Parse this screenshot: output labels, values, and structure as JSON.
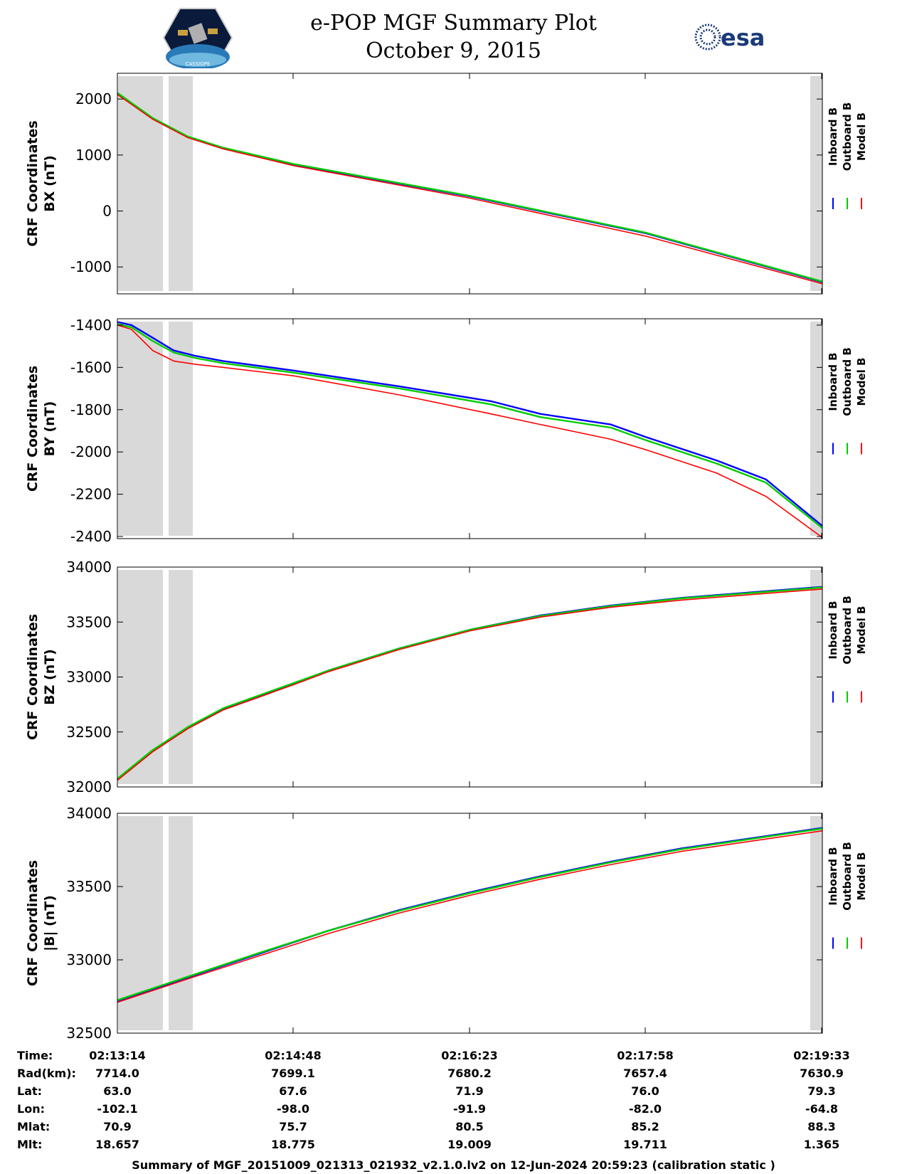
{
  "header": {
    "title": "e-POP MGF Summary Plot",
    "date": "October 9, 2015",
    "logo_left_text": "CASSIOPE",
    "logo_right_text": "esa"
  },
  "colors": {
    "inboard": "#0000ff",
    "outboard": "#00cc00",
    "model": "#ff0000",
    "shade": "#d9d9d9"
  },
  "chart_data": [
    {
      "type": "line",
      "ylabel_line1": "CRF Coordinates",
      "ylabel_line2": "BX (nT)",
      "ylim": [
        -1480,
        2460
      ],
      "yticks": [
        2000,
        1000,
        0,
        -1000
      ],
      "ytick_labels": [
        "2000",
        "1000",
        "0",
        "-1000"
      ],
      "x": [
        0,
        0.05,
        0.1,
        0.15,
        0.25,
        0.5,
        0.75,
        1
      ],
      "series": [
        {
          "name": "Inboard B",
          "values": [
            2100,
            1650,
            1320,
            1120,
            830,
            260,
            -400,
            -1270
          ]
        },
        {
          "name": "Outboard B",
          "values": [
            2110,
            1660,
            1330,
            1130,
            840,
            270,
            -390,
            -1260
          ]
        },
        {
          "name": "Model B",
          "values": [
            2080,
            1640,
            1310,
            1110,
            810,
            230,
            -450,
            -1300
          ]
        }
      ],
      "legend": [
        "Inboard B",
        "Outboard B",
        "Model B"
      ]
    },
    {
      "type": "line",
      "ylabel_line1": "CRF Coordinates",
      "ylabel_line2": "BY (nT)",
      "ylim": [
        -2410,
        -1370
      ],
      "yticks": [
        -1400,
        -1600,
        -1800,
        -2000,
        -2200,
        -2400
      ],
      "ytick_labels": [
        "-1400",
        "-1600",
        "-1800",
        "-2000",
        "-2200",
        "-2400"
      ],
      "x": [
        0,
        0.02,
        0.05,
        0.08,
        0.11,
        0.15,
        0.25,
        0.4,
        0.53,
        0.6,
        0.7,
        0.75,
        0.85,
        0.92,
        1
      ],
      "series": [
        {
          "name": "Inboard B",
          "values": [
            -1385,
            -1400,
            -1460,
            -1520,
            -1545,
            -1570,
            -1615,
            -1690,
            -1760,
            -1820,
            -1870,
            -1930,
            -2040,
            -2130,
            -2350
          ]
        },
        {
          "name": "Outboard B",
          "values": [
            -1395,
            -1410,
            -1475,
            -1530,
            -1555,
            -1580,
            -1625,
            -1700,
            -1775,
            -1835,
            -1885,
            -1945,
            -2055,
            -2145,
            -2360
          ]
        },
        {
          "name": "Model B",
          "values": [
            -1400,
            -1420,
            -1520,
            -1570,
            -1585,
            -1600,
            -1640,
            -1730,
            -1820,
            -1870,
            -1940,
            -1990,
            -2100,
            -2210,
            -2405
          ]
        }
      ],
      "legend": [
        "Inboard B",
        "Outboard B",
        "Model B"
      ]
    },
    {
      "type": "line",
      "ylabel_line1": "CRF Coordinates",
      "ylabel_line2": "BZ (nT)",
      "ylim": [
        32000,
        34000
      ],
      "yticks": [
        34000,
        33500,
        33000,
        32500,
        32000
      ],
      "ytick_labels": [
        "34000",
        "33500",
        "33000",
        "32500",
        "32000"
      ],
      "x": [
        0,
        0.05,
        0.1,
        0.15,
        0.25,
        0.3,
        0.4,
        0.5,
        0.6,
        0.7,
        0.8,
        0.9,
        1
      ],
      "series": [
        {
          "name": "Inboard B",
          "values": [
            32070,
            32330,
            32540,
            32710,
            32940,
            33060,
            33260,
            33430,
            33560,
            33650,
            33720,
            33770,
            33820
          ]
        },
        {
          "name": "Outboard B",
          "values": [
            32075,
            32335,
            32545,
            32715,
            32945,
            33060,
            33260,
            33430,
            33555,
            33645,
            33715,
            33765,
            33815
          ]
        },
        {
          "name": "Model B",
          "values": [
            32060,
            32320,
            32530,
            32700,
            32930,
            33050,
            33250,
            33420,
            33545,
            33635,
            33700,
            33750,
            33800
          ]
        }
      ],
      "legend": [
        "Inboard B",
        "Outboard B",
        "Model B"
      ]
    },
    {
      "type": "line",
      "ylabel_line1": "CRF Coordinates",
      "ylabel_line2": "|B| (nT)",
      "ylim": [
        32500,
        34000
      ],
      "yticks": [
        34000,
        33500,
        33000,
        32500
      ],
      "ytick_labels": [
        "34000",
        "33500",
        "33000",
        "32500"
      ],
      "x": [
        0,
        0.1,
        0.2,
        0.3,
        0.4,
        0.5,
        0.6,
        0.7,
        0.8,
        0.9,
        1
      ],
      "series": [
        {
          "name": "Inboard B",
          "values": [
            32720,
            32880,
            33040,
            33200,
            33340,
            33460,
            33570,
            33670,
            33760,
            33830,
            33900
          ]
        },
        {
          "name": "Outboard B",
          "values": [
            32725,
            32885,
            33045,
            33200,
            33335,
            33455,
            33565,
            33665,
            33755,
            33825,
            33895
          ]
        },
        {
          "name": "Model B",
          "values": [
            32710,
            32870,
            33025,
            33180,
            33320,
            33440,
            33550,
            33650,
            33740,
            33810,
            33880
          ]
        }
      ],
      "legend": [
        "Inboard B",
        "Outboard B",
        "Model B"
      ]
    }
  ],
  "ephemeris": {
    "labels": [
      "Time:",
      "Rad(km):",
      "Lat:",
      "Lon:",
      "Mlat:",
      "Mlt:"
    ],
    "columns": [
      [
        "02:13:14",
        "7714.0",
        "63.0",
        "-102.1",
        "70.9",
        "18.657"
      ],
      [
        "02:14:48",
        "7699.1",
        "67.6",
        "-98.0",
        "75.7",
        "18.775"
      ],
      [
        "02:16:23",
        "7680.2",
        "71.9",
        "-91.9",
        "80.5",
        "19.009"
      ],
      [
        "02:17:58",
        "7657.4",
        "76.0",
        "-82.0",
        "85.2",
        "19.711"
      ],
      [
        "02:19:33",
        "7630.9",
        "79.3",
        "-64.8",
        "88.3",
        "1.365"
      ]
    ]
  },
  "footer": "Summary of MGF_20151009_021313_021932_v2.1.0.lv2 on 12-Jun-2024 20:59:23 (calibration static )"
}
